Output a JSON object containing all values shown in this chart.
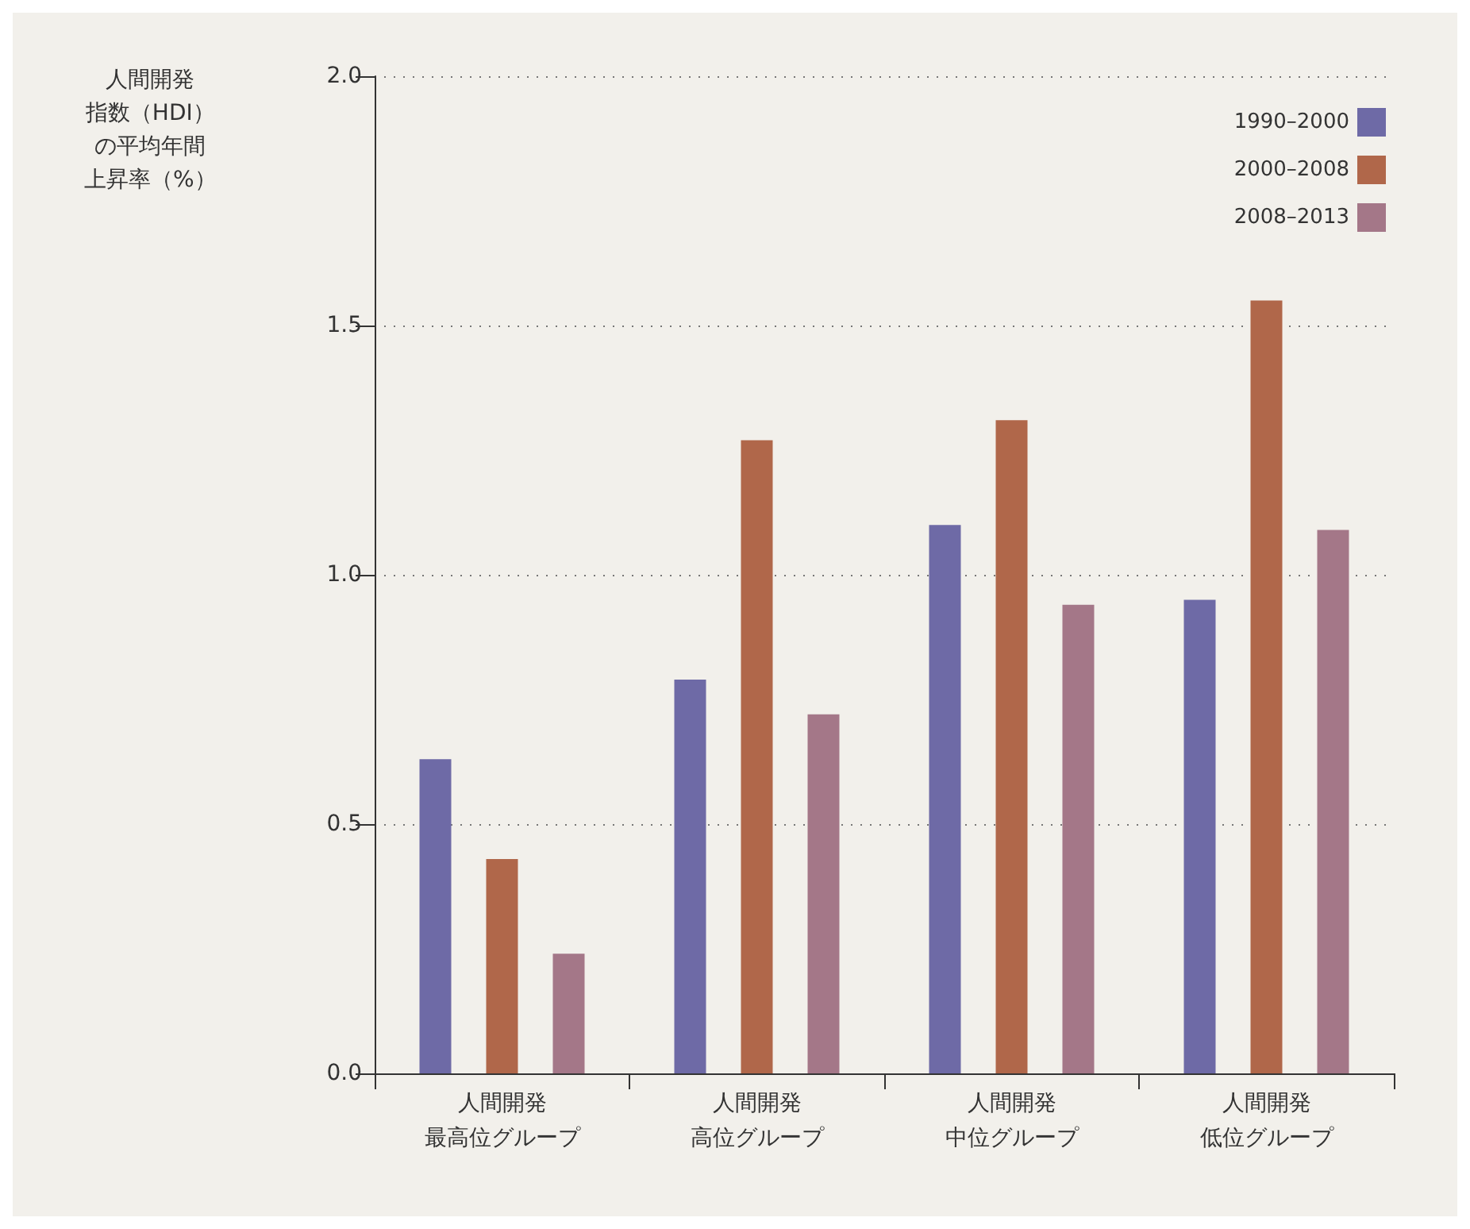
{
  "chart_data": {
    "type": "bar",
    "ylabel": "人間開発指数（HDI）の平均年間上昇率（%）",
    "categories": [
      "人間開発最高位グループ",
      "人間開発高位グループ",
      "人間開発中位グループ",
      "人間開発低位グループ"
    ],
    "series": [
      {
        "name": "1990–2000",
        "color": "#6e6aa6",
        "values": [
          0.63,
          0.79,
          1.1,
          0.95
        ]
      },
      {
        "name": "2000–2008",
        "color": "#b0674a",
        "values": [
          0.43,
          1.27,
          1.31,
          1.55
        ]
      },
      {
        "name": "2008–2013",
        "color": "#a47788",
        "values": [
          0.24,
          0.72,
          0.94,
          1.09
        ]
      }
    ],
    "ylim": [
      0,
      2
    ],
    "yticks": [
      {
        "value": 0,
        "label": "0.0"
      },
      {
        "value": 0.5,
        "label": "0.5"
      },
      {
        "value": 1,
        "label": "1.0"
      },
      {
        "value": 1.5,
        "label": "1.5"
      },
      {
        "value": 2,
        "label": "2.0"
      }
    ],
    "grid": "y",
    "legend": "top right"
  }
}
